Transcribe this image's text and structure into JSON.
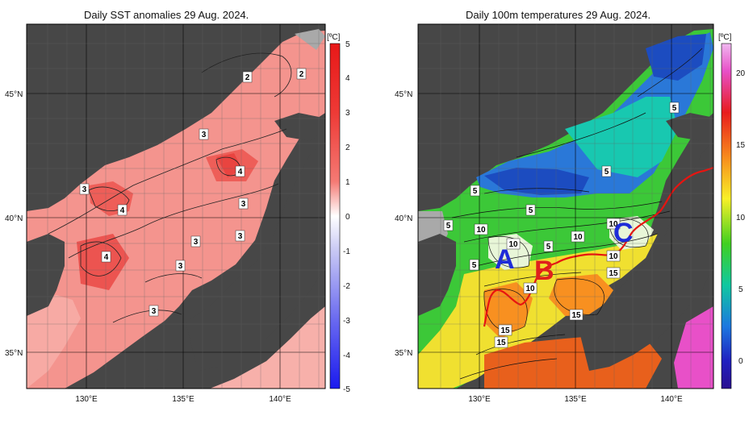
{
  "left_panel": {
    "title": "Daily SST anomalies 29 Aug. 2024.",
    "colorbar_unit": "[ºC]",
    "colorbar_ticks": [
      "5",
      "4",
      "3",
      "2",
      "1",
      "0",
      "-1",
      "-2",
      "-3",
      "-4",
      "-5"
    ],
    "contour_labels": [
      "2",
      "2",
      "3",
      "4",
      "3",
      "4",
      "3",
      "3",
      "3",
      "4",
      "3",
      "3"
    ]
  },
  "right_panel": {
    "title": "Daily 100m temperatures 29 Aug. 2024.",
    "colorbar_unit": "[ºC]",
    "colorbar_ticks": [
      "20",
      "15",
      "10",
      "5",
      "0"
    ],
    "contour_labels": [
      "5",
      "5",
      "5",
      "5",
      "5",
      "10",
      "10",
      "10",
      "5",
      "10",
      "5",
      "10",
      "15",
      "10",
      "15",
      "15",
      "15"
    ],
    "region_letters": [
      {
        "letter": "A",
        "color": "#1e2cd8"
      },
      {
        "letter": "B",
        "color": "#e0201c"
      },
      {
        "letter": "C",
        "color": "#1e2cd8"
      }
    ]
  },
  "axes": {
    "lat_labels": [
      "45°N",
      "40°N",
      "35°N"
    ],
    "lon_labels": [
      "130°E",
      "135°E",
      "140°E"
    ]
  },
  "colors": {
    "land": "#474747",
    "shelf": "#a9a9a9",
    "anomaly_sea": "#f4948e",
    "front_line": "#e81410"
  }
}
